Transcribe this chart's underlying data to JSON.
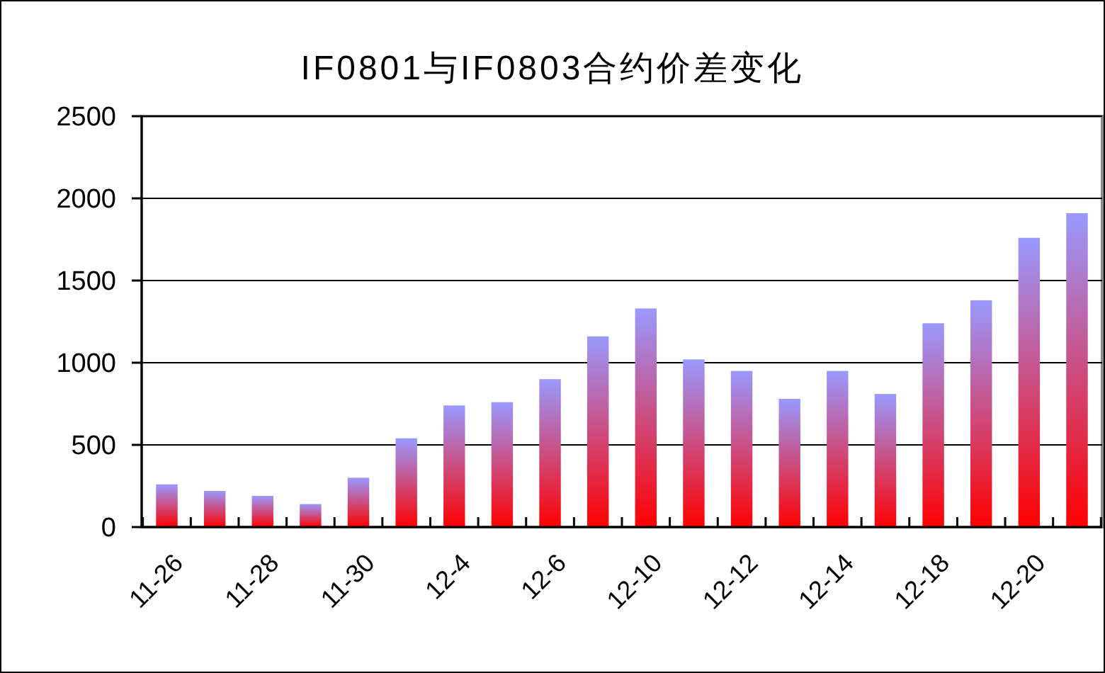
{
  "chart_data": {
    "type": "bar",
    "title": "IF0801与IF0803合约价差变化",
    "categories": [
      "11-26",
      null,
      "11-28",
      null,
      "11-30",
      null,
      "12-4",
      null,
      "12-6",
      null,
      "12-10",
      null,
      "12-12",
      null,
      "12-14",
      null,
      "12-18",
      null,
      "12-20",
      null
    ],
    "values": [
      260,
      220,
      190,
      140,
      300,
      540,
      740,
      760,
      900,
      1160,
      1330,
      1020,
      950,
      780,
      950,
      810,
      1240,
      1380,
      1760,
      1910
    ],
    "color": "#9999ff",
    "ylim": [
      0,
      2500
    ],
    "yticks": [
      0,
      500,
      1000,
      1500,
      2000,
      2500
    ],
    "grid": "y"
  }
}
